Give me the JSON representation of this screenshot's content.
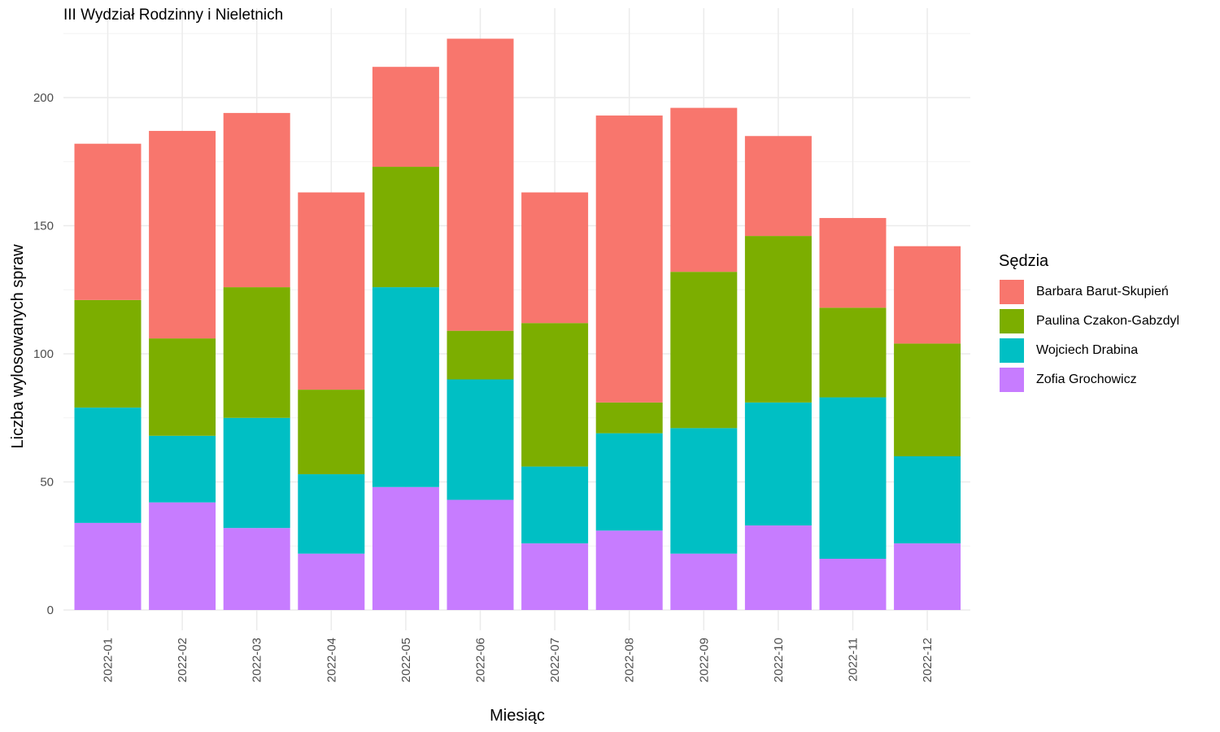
{
  "chart_data": {
    "type": "bar",
    "stacked": true,
    "title": "III Wydział Rodzinny i Nieletnich",
    "xlabel": "Miesiąc",
    "ylabel": "Liczba wylosowanych spraw",
    "ylim": [
      0,
      230
    ],
    "yticks": [
      0,
      50,
      100,
      150,
      200
    ],
    "grid": true,
    "legend_title": "Sędzia",
    "legend_position": "right",
    "categories": [
      "2022-01",
      "2022-02",
      "2022-03",
      "2022-04",
      "2022-05",
      "2022-06",
      "2022-07",
      "2022-08",
      "2022-09",
      "2022-10",
      "2022-11",
      "2022-12"
    ],
    "series": [
      {
        "name": "Zofia Grochowicz",
        "color": "#C77CFF",
        "values": [
          34,
          42,
          32,
          22,
          48,
          43,
          26,
          31,
          22,
          33,
          20,
          26
        ]
      },
      {
        "name": "Wojciech Drabina",
        "color": "#00BFC4",
        "values": [
          45,
          26,
          43,
          31,
          78,
          47,
          30,
          38,
          49,
          48,
          63,
          34
        ]
      },
      {
        "name": "Paulina Czakon-Gabzdyl",
        "color": "#7CAE00",
        "values": [
          42,
          38,
          51,
          33,
          47,
          19,
          56,
          12,
          61,
          65,
          35,
          44
        ]
      },
      {
        "name": "Barbara Barut-Skupień",
        "color": "#F8766D",
        "values": [
          61,
          81,
          68,
          77,
          39,
          114,
          51,
          112,
          64,
          39,
          35,
          38
        ]
      }
    ],
    "legend_order": [
      "Barbara Barut-Skupień",
      "Paulina Czakon-Gabzdyl",
      "Wojciech Drabina",
      "Zofia Grochowicz"
    ]
  }
}
